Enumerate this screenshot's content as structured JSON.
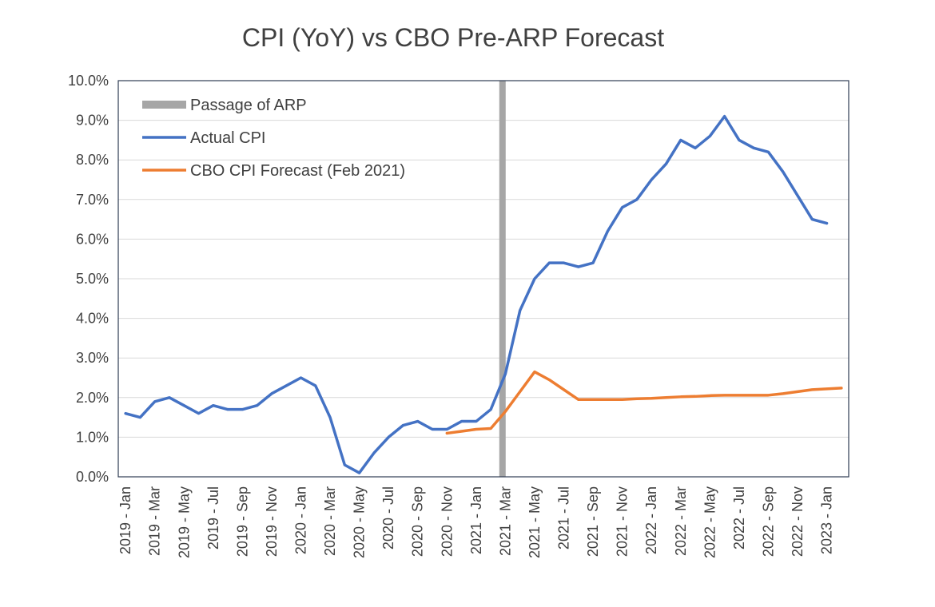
{
  "chart_data": {
    "type": "line",
    "title": "CPI (YoY) vs CBO Pre-ARP Forecast",
    "xlabel": "",
    "ylabel": "",
    "ylim": [
      0,
      10
    ],
    "y_ticks": [
      "0.0%",
      "1.0%",
      "2.0%",
      "3.0%",
      "4.0%",
      "5.0%",
      "6.0%",
      "7.0%",
      "8.0%",
      "9.0%",
      "10.0%"
    ],
    "grid": true,
    "legend_position": "top-left",
    "categories": [
      "2019 - Jan",
      "2019 - Feb",
      "2019 - Mar",
      "2019 - Apr",
      "2019 - May",
      "2019 - Jun",
      "2019 - Jul",
      "2019 - Aug",
      "2019 - Sep",
      "2019 - Oct",
      "2019 - Nov",
      "2019 - Dec",
      "2020 - Jan",
      "2020 - Feb",
      "2020 - Mar",
      "2020 - Apr",
      "2020 - May",
      "2020 - Jun",
      "2020 - Jul",
      "2020 - Aug",
      "2020 - Sep",
      "2020 - Oct",
      "2020 - Nov",
      "2020 - Dec",
      "2021 - Jan",
      "2021 - Feb",
      "2021 - Mar",
      "2021 - Apr",
      "2021 - May",
      "2021 - Jun",
      "2021 - Jul",
      "2021 - Aug",
      "2021 - Sep",
      "2021 - Oct",
      "2021 - Nov",
      "2021 - Dec",
      "2022 - Jan",
      "2022 - Feb",
      "2022 - Mar",
      "2022 - Apr",
      "2022 - May",
      "2022 - Jun",
      "2022 - Jul",
      "2022 - Aug",
      "2022 - Sep",
      "2022 - Oct",
      "2022 - Nov",
      "2022 - Dec",
      "2023 - Jan",
      "2023 - Feb"
    ],
    "x_tick_labels": [
      "2019 - Jan",
      "2019 - Mar",
      "2019 - May",
      "2019 - Jul",
      "2019 - Sep",
      "2019 - Nov",
      "2020 - Jan",
      "2020 - Mar",
      "2020 - May",
      "2020 - Jul",
      "2020 - Sep",
      "2020 - Nov",
      "2021 - Jan",
      "2021 - Mar",
      "2021 - May",
      "2021 - Jul",
      "2021 - Sep",
      "2021 - Nov",
      "2022 - Jan",
      "2022 - Mar",
      "2022 - May",
      "2022 - Jul",
      "2022 - Sep",
      "2022 - Nov",
      "2023 - Jan"
    ],
    "series": [
      {
        "name": "Actual CPI",
        "color": "#4472C4",
        "values": [
          1.6,
          1.5,
          1.9,
          2.0,
          1.8,
          1.6,
          1.8,
          1.7,
          1.7,
          1.8,
          2.1,
          2.3,
          2.5,
          2.3,
          1.5,
          0.3,
          0.1,
          0.6,
          1.0,
          1.3,
          1.4,
          1.2,
          1.2,
          1.4,
          1.4,
          1.7,
          2.6,
          4.2,
          5.0,
          5.4,
          5.4,
          5.3,
          5.4,
          6.2,
          6.8,
          7.0,
          7.5,
          7.9,
          8.5,
          8.3,
          8.6,
          9.1,
          8.5,
          8.3,
          8.2,
          7.7,
          7.1,
          6.5,
          6.4,
          null
        ]
      },
      {
        "name": "CBO CPI Forecast (Feb 2021)",
        "color": "#ED7D31",
        "values": [
          null,
          null,
          null,
          null,
          null,
          null,
          null,
          null,
          null,
          null,
          null,
          null,
          null,
          null,
          null,
          null,
          null,
          null,
          null,
          null,
          null,
          null,
          1.1,
          1.15,
          1.2,
          1.22,
          1.65,
          2.15,
          2.65,
          2.45,
          2.2,
          1.95,
          1.95,
          1.95,
          1.95,
          1.97,
          1.98,
          2.0,
          2.02,
          2.03,
          2.05,
          2.06,
          2.06,
          2.06,
          2.06,
          2.1,
          2.15,
          2.2,
          2.22,
          2.24
        ]
      }
    ],
    "marker": {
      "name": "Passage of ARP",
      "category": "2021 - Mar",
      "color": "#A6A6A6"
    }
  }
}
